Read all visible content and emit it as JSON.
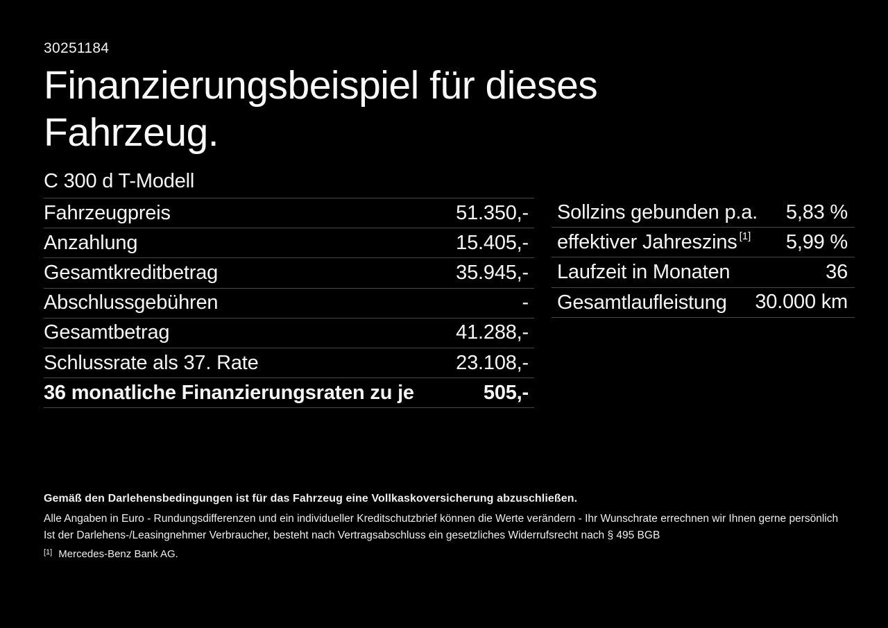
{
  "doc": {
    "id_number": "30251184",
    "title": "Finanzierungsbeispiel für dieses Fahrzeug.",
    "model": "C 300 d T-Modell"
  },
  "left_table": {
    "rows": [
      {
        "label": "Fahrzeugpreis",
        "value": "51.350,-"
      },
      {
        "label": "Anzahlung",
        "value": "15.405,-"
      },
      {
        "label": "Gesamtkreditbetrag",
        "value": "35.945,-"
      },
      {
        "label": "Abschlussgebühren",
        "value": "-"
      },
      {
        "label": "Gesamtbetrag",
        "value": "41.288,-"
      },
      {
        "label": "Schlussrate als 37. Rate",
        "value": "23.108,-"
      },
      {
        "label": "36 monatliche Finanzierungsraten zu je",
        "value": "505,-"
      }
    ]
  },
  "right_table": {
    "rows": [
      {
        "label": "Sollzins gebunden p.a.",
        "sup": "",
        "value": "5,83 %"
      },
      {
        "label": "effektiver Jahreszins",
        "sup": "[1]",
        "value": "5,99 %"
      },
      {
        "label": "Laufzeit in Monaten",
        "sup": "",
        "value": "36"
      },
      {
        "label": "Gesamtlaufleistung",
        "sup": "",
        "value": "30.000 km"
      }
    ]
  },
  "footer": {
    "insurance_note": "Gemäß den Darlehensbedingungen ist für das Fahrzeug eine Vollkaskoversicherung abzuschließen.",
    "disclaimer": "Alle Angaben in Euro - Rundungsdifferenzen und ein individueller Kreditschutzbrief können die Werte verändern - Ihr Wunschrate errechnen wir Ihnen gerne persönlich",
    "withdrawal_note": "Ist der Darlehens-/Leasingnehmer Verbraucher, besteht nach Vertragsabschluss ein gesetzliches Widerrufsrecht nach § 495 BGB",
    "footnote_marker": "[1]",
    "footnote_text": "Mercedes-Benz Bank AG."
  },
  "colors": {
    "background": "#000000",
    "text": "#f5f5f5",
    "divider": "#4a4a4a"
  }
}
